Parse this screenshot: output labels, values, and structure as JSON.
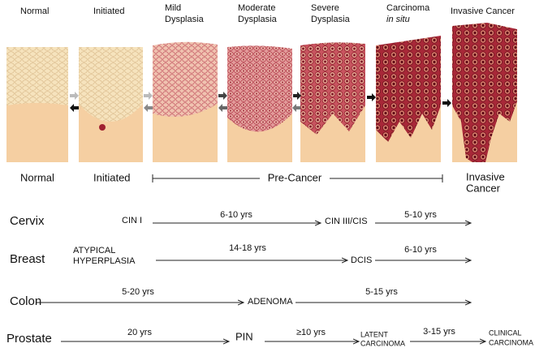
{
  "stages": [
    {
      "lines": [
        "Normal"
      ]
    },
    {
      "lines": [
        "Initiated"
      ]
    },
    {
      "lines": [
        "Mild",
        "Dysplasia"
      ]
    },
    {
      "lines": [
        "Moderate",
        "Dysplasia"
      ]
    },
    {
      "lines": [
        "Severe",
        "Dysplasia"
      ]
    },
    {
      "lines": [
        "Carcinoma",
        "in situ"
      ]
    },
    {
      "lines": [
        "Invasive Cancer"
      ]
    }
  ],
  "phases": [
    {
      "lines": [
        "Normal"
      ]
    },
    {
      "lines": [
        "Initiated"
      ]
    },
    {
      "lines": [
        "Pre-Cancer"
      ]
    },
    {
      "lines": [
        "Invasive",
        "Cancer"
      ]
    }
  ],
  "timelines": [
    {
      "organ": "Cervix",
      "nodes": [
        {
          "lines": [
            "CIN I"
          ]
        },
        {
          "lines": [
            "CIN III/CIS"
          ]
        }
      ],
      "intervals": [
        "6-10 yrs",
        "5-10 yrs"
      ]
    },
    {
      "organ": "Breast",
      "nodes": [
        {
          "lines": [
            "ATYPICAL",
            "HYPERPLASIA"
          ]
        },
        {
          "lines": [
            "DCIS"
          ]
        }
      ],
      "intervals": [
        "14-18 yrs",
        "6-10 yrs"
      ]
    },
    {
      "organ": "Colon",
      "nodes": [
        {
          "lines": [
            "ADENOMA"
          ]
        }
      ],
      "intervals": [
        "5-20 yrs",
        "5-15 yrs"
      ]
    },
    {
      "organ": "Prostate",
      "nodes": [
        {
          "lines": [
            "PIN"
          ]
        },
        {
          "lines": [
            "LATENT",
            "CARCINOMA"
          ]
        },
        {
          "lines": [
            "CLINICAL",
            "CARCINOMA"
          ]
        }
      ],
      "intervals": [
        "20 yrs",
        "≥10 yrs",
        "3-15 yrs"
      ]
    }
  ]
}
